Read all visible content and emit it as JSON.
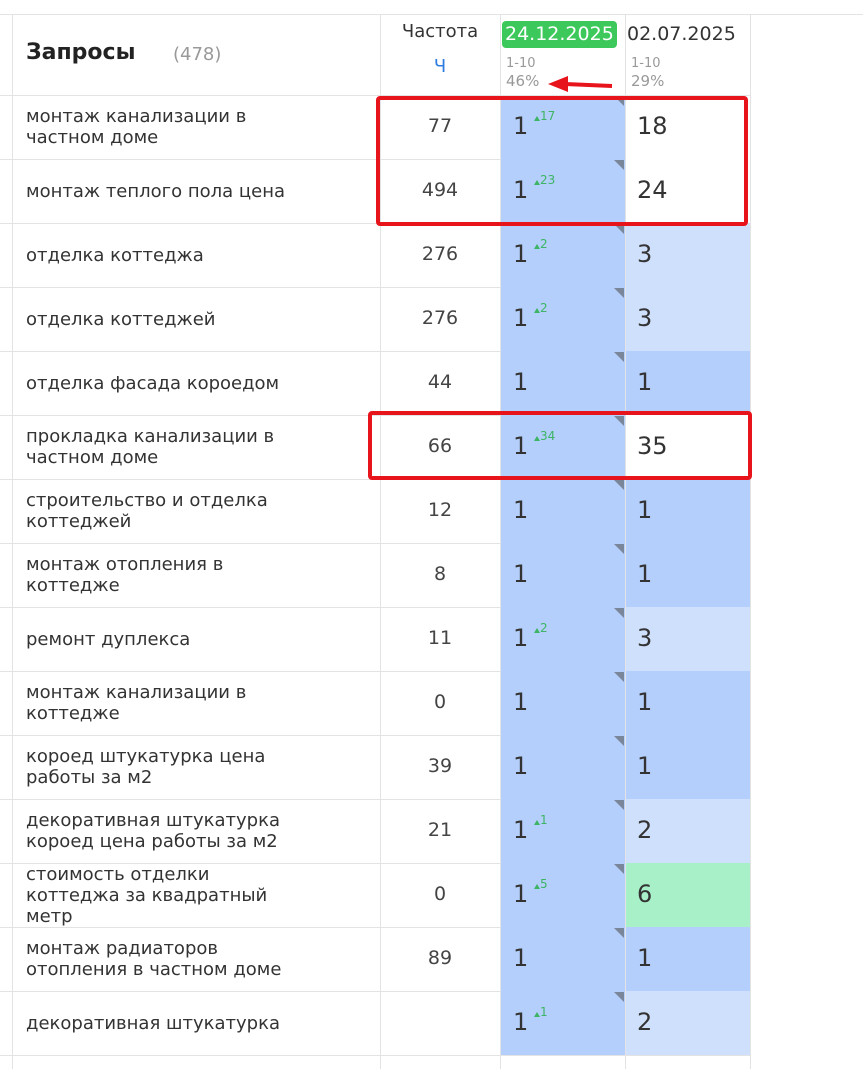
{
  "header": {
    "title": "Запросы",
    "count": "(478)",
    "freq_title": "Частота",
    "freq_sub": "Ч",
    "dates": [
      {
        "date": "24.12.2025",
        "range": "1-10",
        "share": "46%",
        "color": "#3cc85a"
      },
      {
        "date": "02.07.2025",
        "range": "1-10",
        "share": "29%"
      }
    ]
  },
  "table": {
    "rows": [
      {
        "query": [
          "монтаж канализации в",
          "частном доме"
        ],
        "freq": 77,
        "pos1": 1,
        "change": 17,
        "pos2": 18,
        "color2": "#ffffff"
      },
      {
        "query": [
          "монтаж теплого пола цена"
        ],
        "freq": 494,
        "pos1": 1,
        "change": 23,
        "pos2": 24,
        "color2": "#ffffff"
      },
      {
        "query": [
          "отделка коттеджа"
        ],
        "freq": 276,
        "pos1": 1,
        "change": 2,
        "pos2": 3,
        "color2": "#cfe0fc"
      },
      {
        "query": [
          "отделка коттеджей"
        ],
        "freq": 276,
        "pos1": 1,
        "change": 2,
        "pos2": 3,
        "color2": "#cfe0fc"
      },
      {
        "query": [
          "отделка фасада короедом"
        ],
        "freq": 44,
        "pos1": 1,
        "pos2": 1,
        "color2": "#b4cffb"
      },
      {
        "query": [
          "прокладка канализации в",
          "частном доме"
        ],
        "freq": 66,
        "pos1": 1,
        "change": 34,
        "pos2": 35,
        "color2": "#ffffff"
      },
      {
        "query": [
          "строительство и отделка",
          "коттеджей"
        ],
        "freq": 12,
        "pos1": 1,
        "pos2": 1,
        "color2": "#b4cffb"
      },
      {
        "query": [
          "монтаж отопления в",
          "коттедже"
        ],
        "freq": 8,
        "pos1": 1,
        "pos2": 1,
        "color2": "#b4cffb"
      },
      {
        "query": [
          "ремонт дуплекса"
        ],
        "freq": 11,
        "pos1": 1,
        "change": 2,
        "pos2": 3,
        "color2": "#cfe0fc"
      },
      {
        "query": [
          "монтаж канализации в",
          "коттедже"
        ],
        "freq": 0,
        "pos1": 1,
        "pos2": 1,
        "color2": "#b4cffb"
      },
      {
        "query": [
          "короед штукатурка цена",
          "работы за м2"
        ],
        "freq": 39,
        "pos1": 1,
        "pos2": 1,
        "color2": "#b4cffb"
      },
      {
        "query": [
          "декоративная штукатурка",
          "короед цена работы за м2"
        ],
        "freq": 21,
        "pos1": 1,
        "change": 1,
        "pos2": 2,
        "color2": "#cfe0fc"
      },
      {
        "query": [
          "стоимость отделки",
          "коттеджа за квадратный",
          "метр"
        ],
        "freq": 0,
        "pos1": 1,
        "change": 5,
        "pos2": 6,
        "color2": "#a8f0c8"
      },
      {
        "query": [
          "монтаж радиаторов",
          "отопления в частном доме"
        ],
        "freq": 89,
        "pos1": 1,
        "pos2": 1,
        "color2": "#b4cffb"
      },
      {
        "query": [
          "декоративная штукатурка"
        ],
        "pos1": 1,
        "change": 1,
        "pos2": 2,
        "color2": "#cfe0fc"
      }
    ]
  }
}
